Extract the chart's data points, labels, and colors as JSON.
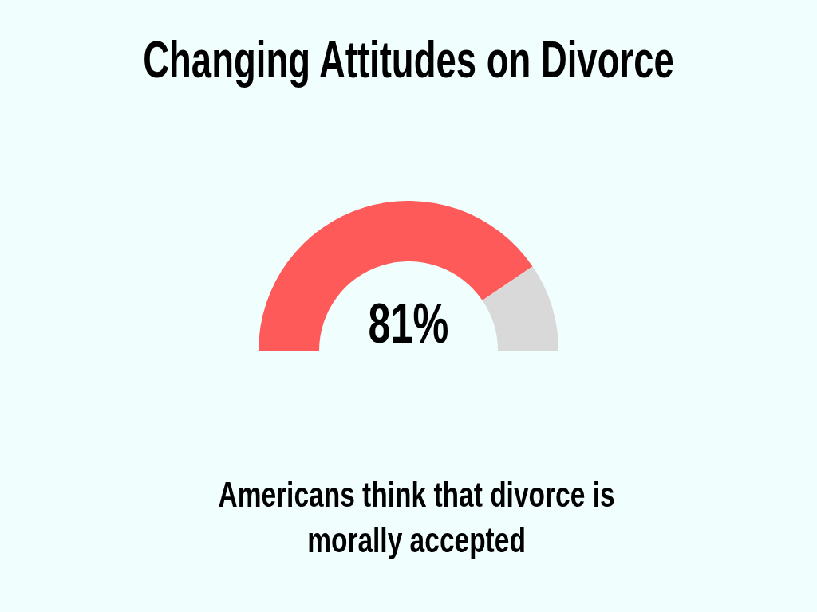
{
  "chart_data": {
    "type": "donut",
    "title": "Changing Attitudes on Divorce",
    "categories": [
      null,
      null
    ],
    "values": [
      81,
      19
    ],
    "colors": [
      "#ff5a5a",
      "#d9d9d9"
    ],
    "value_labels": [
      "81%",
      null
    ],
    "annotations": [
      "Americans think that divorce is morally accepted"
    ]
  }
}
